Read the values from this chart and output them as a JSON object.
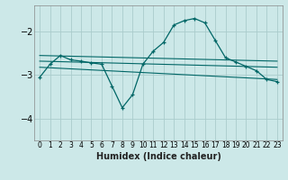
{
  "xlabel": "Humidex (Indice chaleur)",
  "ylabel": "",
  "bg_color": "#cce8e8",
  "grid_color": "#aacccc",
  "line_color": "#006666",
  "xlim": [
    -0.5,
    23.5
  ],
  "ylim": [
    -4.5,
    -1.4
  ],
  "yticks": [
    -4,
    -3,
    -2
  ],
  "xticks": [
    0,
    1,
    2,
    3,
    4,
    5,
    6,
    7,
    8,
    9,
    10,
    11,
    12,
    13,
    14,
    15,
    16,
    17,
    18,
    19,
    20,
    21,
    22,
    23
  ],
  "series": [
    {
      "x": [
        0,
        1,
        2,
        3,
        4,
        5,
        6,
        7,
        8,
        9,
        10,
        11,
        12,
        13,
        14,
        15,
        16,
        17,
        18,
        19,
        20,
        21,
        22,
        23
      ],
      "y": [
        -3.05,
        -2.75,
        -2.55,
        -2.65,
        -2.68,
        -2.72,
        -2.75,
        -3.25,
        -3.75,
        -3.45,
        -2.75,
        -2.45,
        -2.25,
        -1.85,
        -1.75,
        -1.7,
        -1.8,
        -2.2,
        -2.6,
        -2.7,
        -2.8,
        -2.9,
        -3.1,
        -3.15
      ]
    },
    {
      "x": [
        0,
        23
      ],
      "y": [
        -2.55,
        -2.68
      ]
    },
    {
      "x": [
        0,
        23
      ],
      "y": [
        -2.68,
        -2.82
      ]
    },
    {
      "x": [
        0,
        23
      ],
      "y": [
        -2.82,
        -3.1
      ]
    }
  ]
}
